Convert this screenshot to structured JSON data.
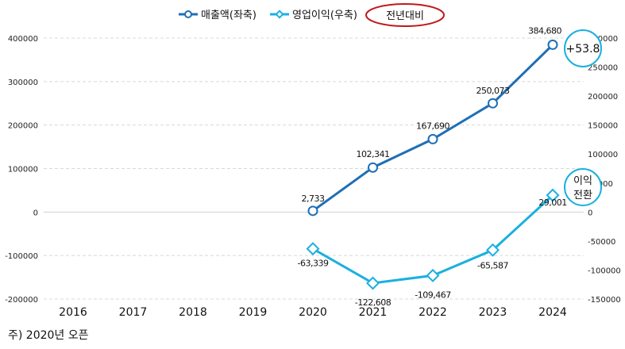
{
  "chart_data": {
    "type": "line",
    "categories": [
      "2016",
      "2017",
      "2018",
      "2019",
      "2020",
      "2021",
      "2022",
      "2023",
      "2024"
    ],
    "series": [
      {
        "name": "매출액(좌축)",
        "axis": "left",
        "color": "#1f6fb5",
        "marker": "circle",
        "values": [
          null,
          null,
          null,
          null,
          2733,
          102341,
          167690,
          250073,
          384680
        ],
        "labels": [
          "",
          "",
          "",
          "",
          "2,733",
          "102,341",
          "167,690",
          "250,073",
          "384,680"
        ]
      },
      {
        "name": "영업이익(우축)",
        "axis": "right",
        "color": "#1ab0e0",
        "marker": "diamond",
        "values": [
          null,
          null,
          null,
          null,
          -63339,
          -122608,
          -109467,
          -65587,
          29001
        ],
        "labels": [
          "",
          "",
          "",
          "",
          "-63,339",
          "-122,608",
          "-109,467",
          "-65,587",
          "29,001"
        ]
      }
    ],
    "left_axis": {
      "ylim": [
        -200000,
        400000
      ],
      "ticks": [
        "400000",
        "300000",
        "200000",
        "100000",
        "0",
        "-100000",
        "-200000"
      ]
    },
    "right_axis": {
      "ylim": [
        -150000,
        300000
      ],
      "ticks": [
        "300000",
        "250000",
        "200000",
        "150000",
        "100000",
        "50000",
        "0",
        "-50000",
        "-100000",
        "-150000"
      ]
    },
    "legend": {
      "placement": "top-center",
      "badge": "전년대비"
    },
    "annotations": [
      {
        "text": "+53.8"
      },
      {
        "text": "이익\n전환",
        "line1": "이익",
        "line2": "전환"
      }
    ],
    "note": "주) 2020년 오픈",
    "grid": true
  }
}
